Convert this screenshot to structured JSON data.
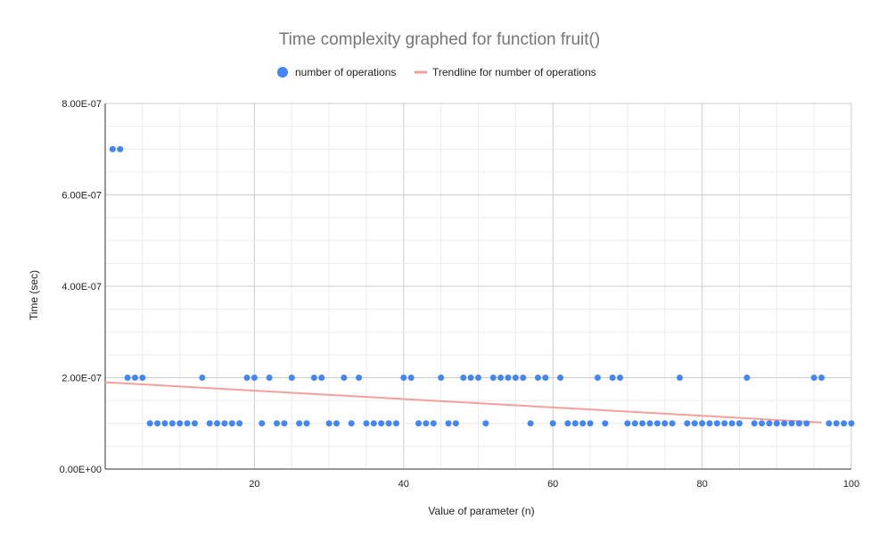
{
  "chart_data": {
    "type": "scatter",
    "title": "Time complexity graphed for function fruit()",
    "xlabel": "Value of parameter (n)",
    "ylabel": "Time (sec)",
    "xlim": [
      0,
      100
    ],
    "ylim": [
      0,
      8e-07
    ],
    "xticks": [
      20,
      40,
      60,
      80,
      100
    ],
    "xtick_labels": [
      "20",
      "40",
      "60",
      "80",
      "100"
    ],
    "yticks": [
      0,
      2e-07,
      4e-07,
      6e-07,
      8e-07
    ],
    "ytick_labels": [
      "0.00E+00",
      "2.00E-07",
      "4.00E-07",
      "6.00E-07",
      "8.00E-07"
    ],
    "grid": true,
    "legend_position": "top",
    "series": [
      {
        "name": "number of operations",
        "color": "#4285f4",
        "marker": "circle",
        "x": [
          1,
          2,
          3,
          4,
          5,
          6,
          7,
          8,
          9,
          10,
          11,
          12,
          13,
          14,
          15,
          16,
          17,
          18,
          19,
          20,
          21,
          22,
          23,
          24,
          25,
          26,
          27,
          28,
          29,
          30,
          31,
          32,
          33,
          34,
          35,
          36,
          37,
          38,
          39,
          40,
          41,
          42,
          43,
          44,
          45,
          46,
          47,
          48,
          49,
          50,
          51,
          52,
          53,
          54,
          55,
          56,
          57,
          58,
          59,
          60,
          61,
          62,
          63,
          64,
          65,
          66,
          67,
          68,
          69,
          70,
          71,
          72,
          73,
          74,
          75,
          76,
          77,
          78,
          79,
          80,
          81,
          82,
          83,
          84,
          85,
          86,
          87,
          88,
          89,
          90,
          91,
          92,
          93,
          94,
          95,
          96,
          97,
          98,
          99,
          100
        ],
        "y": [
          7e-07,
          7e-07,
          2e-07,
          2e-07,
          2e-07,
          1e-07,
          1e-07,
          1e-07,
          1e-07,
          1e-07,
          1e-07,
          1e-07,
          2e-07,
          1e-07,
          1e-07,
          1e-07,
          1e-07,
          1e-07,
          2e-07,
          2e-07,
          1e-07,
          2e-07,
          1e-07,
          1e-07,
          2e-07,
          1e-07,
          1e-07,
          2e-07,
          2e-07,
          1e-07,
          1e-07,
          2e-07,
          1e-07,
          2e-07,
          1e-07,
          1e-07,
          1e-07,
          1e-07,
          1e-07,
          2e-07,
          2e-07,
          1e-07,
          1e-07,
          1e-07,
          2e-07,
          1e-07,
          1e-07,
          2e-07,
          2e-07,
          2e-07,
          1e-07,
          2e-07,
          2e-07,
          2e-07,
          2e-07,
          2e-07,
          1e-07,
          2e-07,
          2e-07,
          1e-07,
          2e-07,
          1e-07,
          1e-07,
          1e-07,
          1e-07,
          2e-07,
          1e-07,
          2e-07,
          2e-07,
          1e-07,
          1e-07,
          1e-07,
          1e-07,
          1e-07,
          1e-07,
          1e-07,
          2e-07,
          1e-07,
          1e-07,
          1e-07,
          1e-07,
          1e-07,
          1e-07,
          1e-07,
          1e-07,
          2e-07,
          1e-07,
          1e-07,
          1e-07,
          1e-07,
          1e-07,
          1e-07,
          1e-07,
          1e-07,
          2e-07,
          2e-07,
          1e-07,
          1e-07,
          1e-07,
          1e-07
        ]
      },
      {
        "name": "Trendline for number of operations",
        "type": "line",
        "color": "#f4a09a",
        "x": [
          0,
          96
        ],
        "y": [
          1.9e-07,
          1.02e-07
        ]
      }
    ]
  }
}
